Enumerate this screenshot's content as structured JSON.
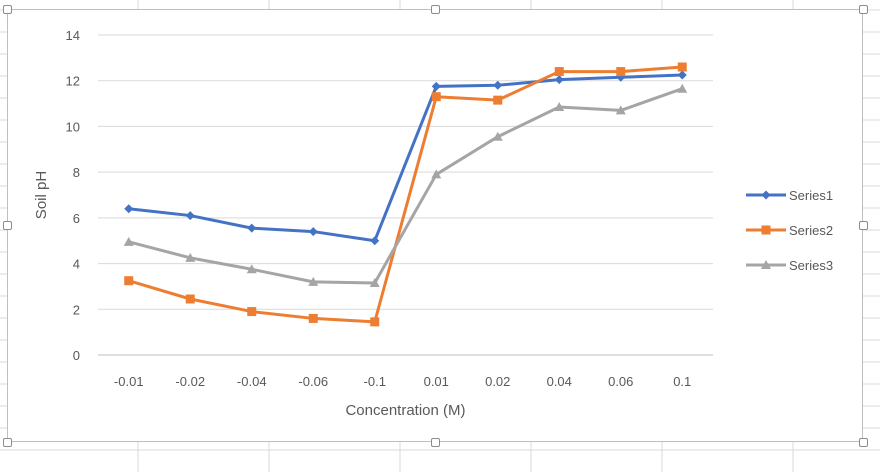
{
  "chart_data": {
    "type": "line",
    "title": "",
    "xlabel": "Concentration (M)",
    "ylabel": "Soil pH",
    "ylim": [
      0,
      14
    ],
    "yticks": [
      "0",
      "2",
      "4",
      "6",
      "8",
      "10",
      "12",
      "14"
    ],
    "categories": [
      "-0.01",
      "-0.02",
      "-0.04",
      "-0.06",
      "-0.1",
      "0.01",
      "0.02",
      "0.04",
      "0.06",
      "0.1"
    ],
    "grid": true,
    "legend_position": "right",
    "series": [
      {
        "name": "Series1",
        "color": "#4472C4",
        "marker": "diamond",
        "values": [
          6.4,
          6.1,
          5.55,
          5.4,
          5.0,
          11.75,
          11.8,
          12.05,
          12.15,
          12.25
        ]
      },
      {
        "name": "Series2",
        "color": "#ED7D31",
        "marker": "square",
        "values": [
          3.25,
          2.45,
          1.9,
          1.6,
          1.45,
          11.3,
          11.15,
          12.4,
          12.4,
          12.6
        ]
      },
      {
        "name": "Series3",
        "color": "#A5A5A5",
        "marker": "triangle",
        "values": [
          4.95,
          4.25,
          3.75,
          3.2,
          3.15,
          7.9,
          9.55,
          10.85,
          10.7,
          11.65
        ]
      }
    ]
  }
}
